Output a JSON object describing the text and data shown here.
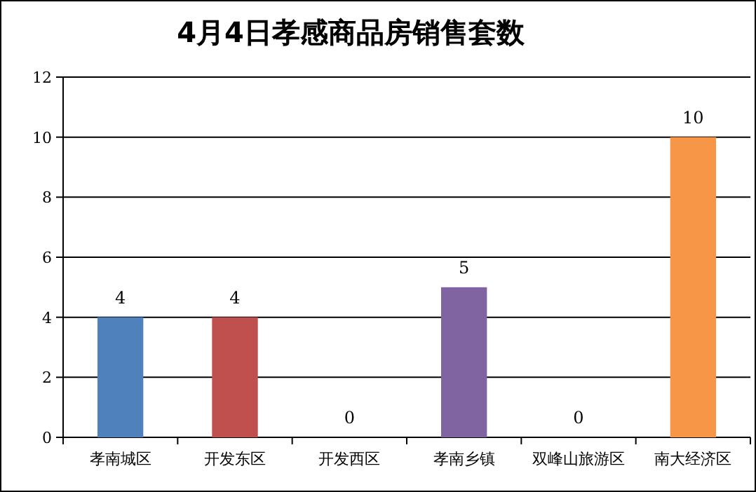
{
  "chart_data": {
    "type": "bar",
    "title": "4月4日孝感商品房销售套数",
    "categories": [
      "孝南城区",
      "开发东区",
      "开发西区",
      "孝南乡镇",
      "双峰山旅游区",
      "南大经济区"
    ],
    "values": [
      4,
      4,
      0,
      5,
      0,
      10
    ],
    "colors": [
      "#4f81bd",
      "#c0504d",
      "#9bbb59",
      "#8064a2",
      "#4bacc6",
      "#f79646"
    ],
    "ylim": [
      0,
      12
    ],
    "yticks": [
      0,
      2,
      4,
      6,
      8,
      10,
      12
    ],
    "grid": "y",
    "data_labels": true
  }
}
